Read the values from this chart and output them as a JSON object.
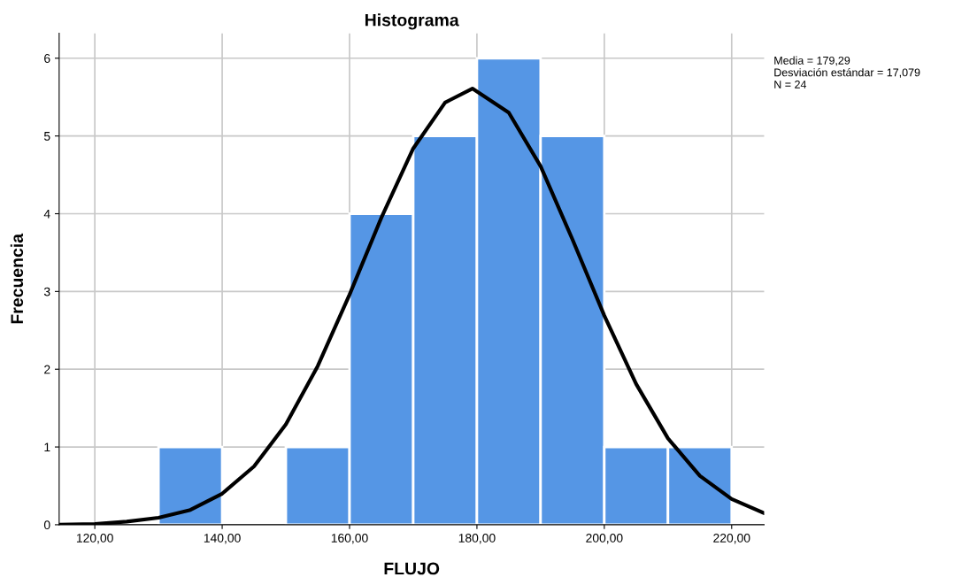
{
  "chart_data": {
    "type": "histogram",
    "title": "Histograma",
    "xlabel": "FLUJO",
    "ylabel": "Frecuencia",
    "bins": [
      130,
      140,
      150,
      160,
      170,
      180,
      190,
      200,
      210,
      220
    ],
    "values": [
      1,
      0,
      1,
      4,
      5,
      6,
      5,
      1,
      1
    ],
    "color": "#5596e5",
    "series": [
      {
        "type": "line",
        "color": "#000000",
        "line_style": "solid",
        "x": [
          114.4,
          120,
          125,
          130,
          135,
          140,
          145,
          150,
          155,
          160,
          165,
          170,
          175,
          179.29,
          185,
          190,
          195,
          200,
          205,
          210,
          215,
          220,
          225.1
        ],
        "values": [
          0.0,
          0.01,
          0.04,
          0.09,
          0.19,
          0.4,
          0.75,
          1.29,
          2.04,
          2.96,
          3.95,
          4.84,
          5.43,
          5.61,
          5.3,
          4.61,
          3.67,
          2.69,
          1.81,
          1.11,
          0.63,
          0.33,
          0.15
        ]
      }
    ],
    "xlim": [
      114.4,
      225.1
    ],
    "xticks": [
      {
        "value": 120,
        "label": "120,00"
      },
      {
        "value": 140,
        "label": "140,00"
      },
      {
        "value": 160,
        "label": "160,00"
      },
      {
        "value": 180,
        "label": "180,00"
      },
      {
        "value": 200,
        "label": "200,00"
      },
      {
        "value": 220,
        "label": "220,00"
      }
    ],
    "ylim": [
      0,
      6.32
    ],
    "yticks": [
      0,
      1,
      2,
      3,
      4,
      5,
      6
    ],
    "grid": true,
    "legend": false,
    "annotations": [
      "Media = 179,29",
      "Desviación estándar = 17,079",
      "N = 24"
    ]
  }
}
